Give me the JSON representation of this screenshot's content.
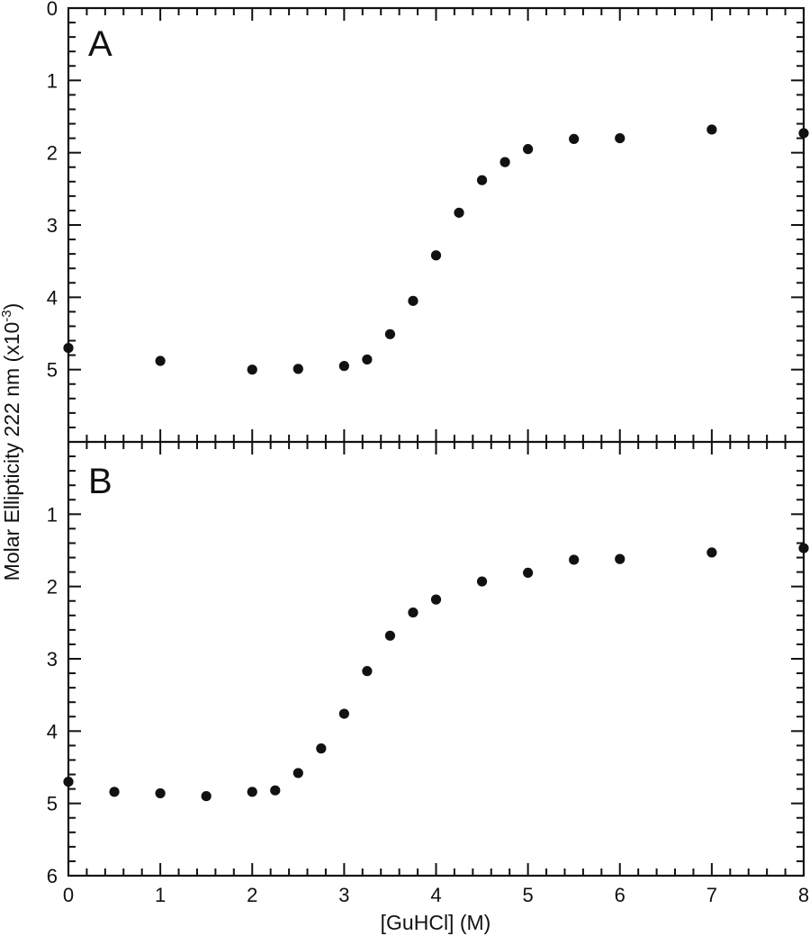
{
  "chart_data": {
    "type": "scatter",
    "layout": "two vertically stacked panels sharing x-axis, inverted y-axis",
    "xlabel": "[GuHCl] (M)",
    "ylabel": "Molar Ellipticity 222 nm (x10",
    "ylabel_superscript": "-3",
    "ylabel_suffix": ")",
    "xlim": [
      0,
      8
    ],
    "x_ticks": [
      0,
      1,
      2,
      3,
      4,
      5,
      6,
      7,
      8
    ],
    "grid": false,
    "marker_color": "#111111",
    "panels": [
      {
        "label": "A",
        "ylim": [
          0,
          6
        ],
        "y_inverted": true,
        "y_tick_labels": [
          0,
          1,
          2,
          3,
          4,
          5
        ],
        "x": [
          0,
          1,
          2,
          2.5,
          3,
          3.25,
          3.5,
          3.75,
          4,
          4.25,
          4.5,
          4.75,
          5,
          5.5,
          6,
          7,
          8
        ],
        "y": [
          4.7,
          4.88,
          5.0,
          4.99,
          4.95,
          4.86,
          4.51,
          4.05,
          3.42,
          2.83,
          2.38,
          2.13,
          1.95,
          1.81,
          1.8,
          1.68,
          1.73
        ]
      },
      {
        "label": "B",
        "ylim": [
          0,
          6
        ],
        "y_inverted": true,
        "y_tick_labels": [
          1,
          2,
          3,
          4,
          5,
          6
        ],
        "x": [
          0,
          0.5,
          1,
          1.5,
          2,
          2.25,
          2.5,
          2.75,
          3,
          3.25,
          3.5,
          3.75,
          4,
          4.5,
          5,
          5.5,
          6,
          7,
          8
        ],
        "y": [
          4.7,
          4.84,
          4.86,
          4.9,
          4.84,
          4.82,
          4.58,
          4.24,
          3.76,
          3.17,
          2.68,
          2.36,
          2.18,
          1.93,
          1.81,
          1.63,
          1.62,
          1.53,
          1.47
        ]
      }
    ]
  }
}
